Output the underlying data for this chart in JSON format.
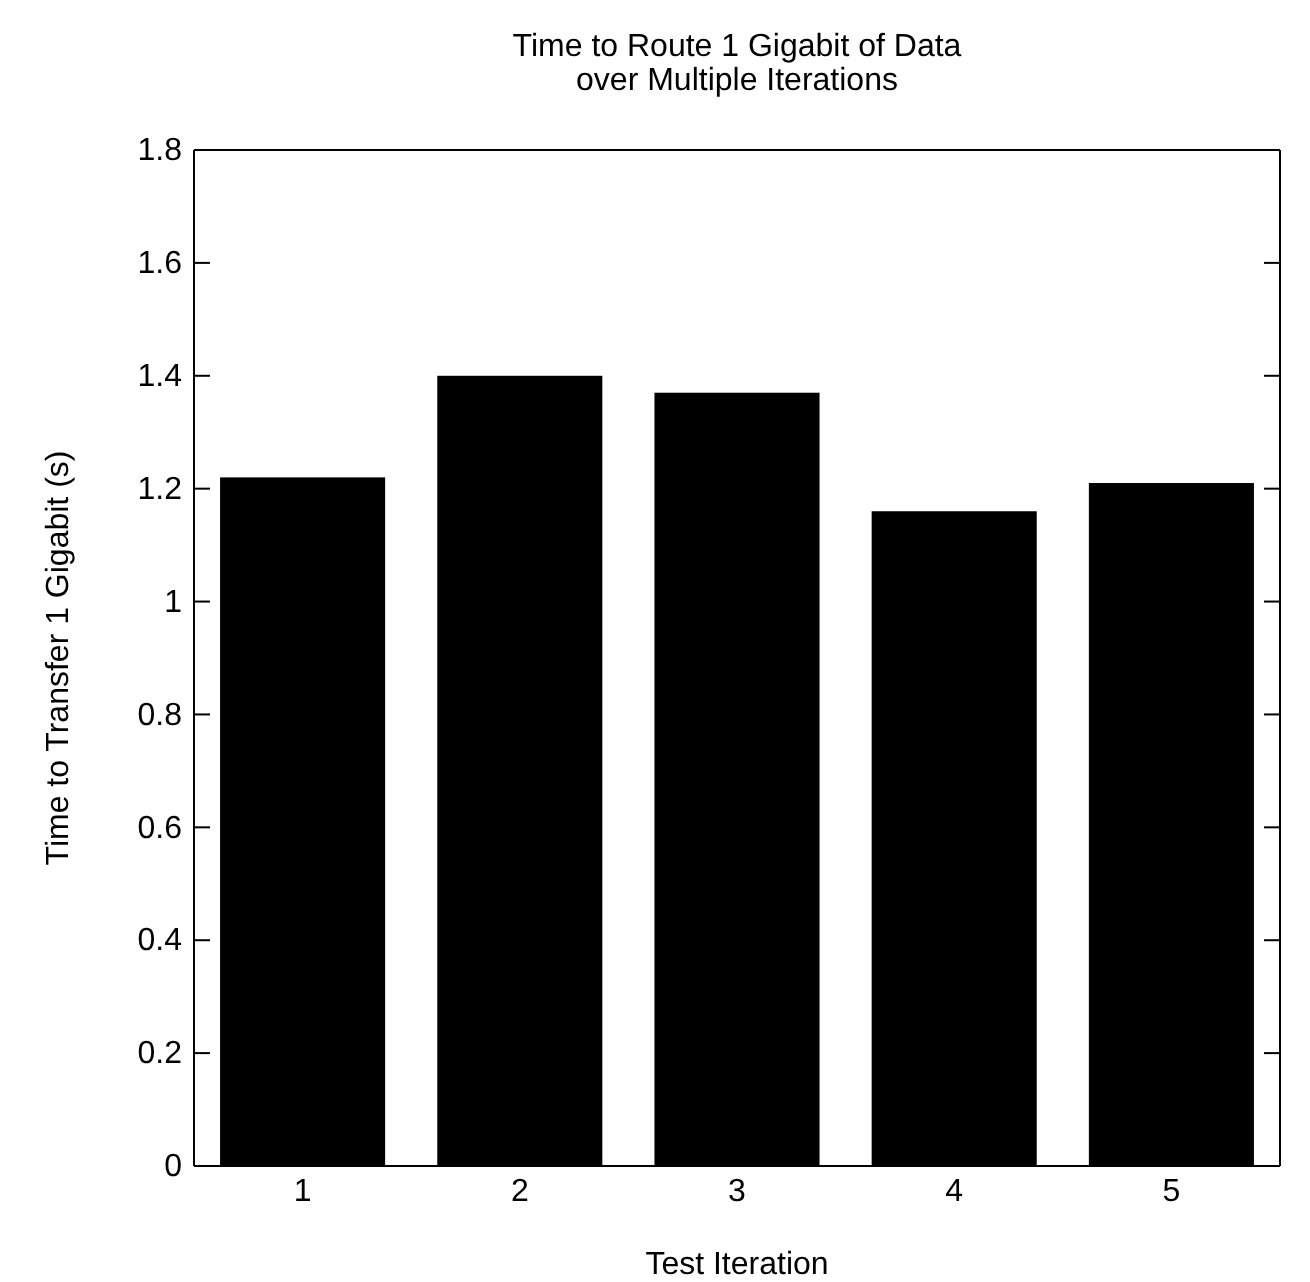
{
  "chart_data": {
    "type": "bar",
    "title": "Time to Route 1 Gigabit of Data\nover Multiple Iterations",
    "xlabel": "Test Iteration",
    "ylabel": "Time to Transfer 1 Gigabit (s)",
    "categories": [
      "1",
      "2",
      "3",
      "4",
      "5"
    ],
    "values": [
      1.22,
      1.4,
      1.37,
      1.16,
      1.21
    ],
    "color": "#000000",
    "ylim": [
      0,
      1.8
    ],
    "yticks": [
      0,
      0.2,
      0.4,
      0.6,
      0.8,
      1,
      1.2,
      1.4,
      1.6,
      1.8
    ],
    "grid": false
  }
}
